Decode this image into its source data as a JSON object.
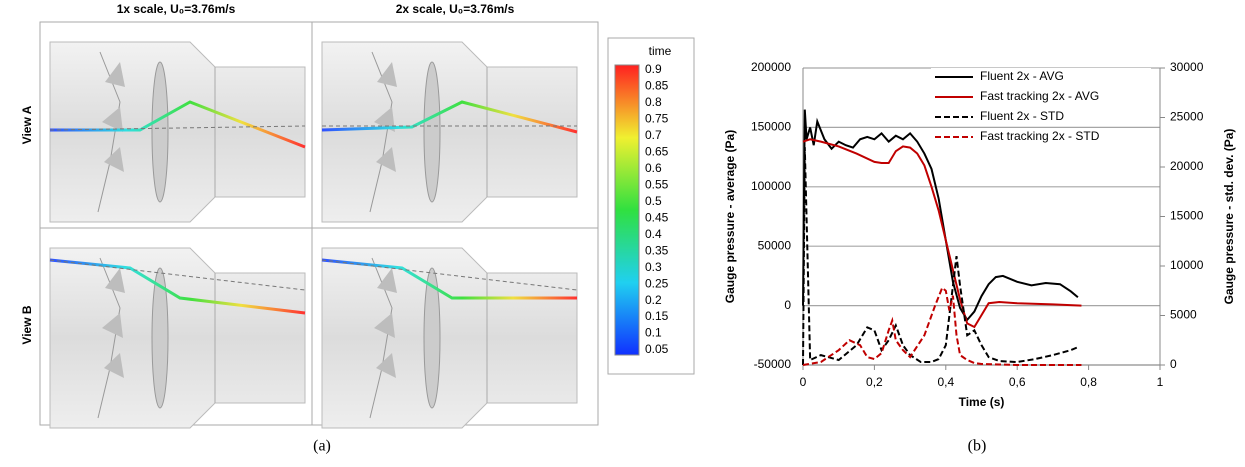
{
  "panel_a": {
    "columns": [
      "1x scale, U₀=3.76m/s",
      "2x scale, U₀=3.76m/s"
    ],
    "rows": [
      "View A",
      "View B"
    ],
    "colorbar": {
      "title": "time",
      "ticks": [
        0.9,
        0.85,
        0.8,
        0.75,
        0.7,
        0.65,
        0.6,
        0.55,
        0.5,
        0.45,
        0.4,
        0.35,
        0.3,
        0.25,
        0.2,
        0.15,
        0.1,
        0.05
      ]
    },
    "caption": "(a)"
  },
  "chart_data": {
    "type": "line",
    "caption": "(b)",
    "xlabel": "Time (s)",
    "ylabel": "Gauge pressure - average (Pa)",
    "y2label": "Gauge pressure - std. dev. (Pa)",
    "xlim": [
      0,
      1
    ],
    "xticks": [
      0,
      {
        "value": 0.2,
        "label": "0,2"
      },
      {
        "value": 0.4,
        "label": "0,4"
      },
      {
        "value": 0.6,
        "label": "0,6"
      },
      {
        "value": 0.8,
        "label": "0,8"
      },
      1
    ],
    "ylim": [
      -50000,
      200000
    ],
    "yticks": [
      -50000,
      0,
      50000,
      100000,
      150000,
      200000
    ],
    "y2lim": [
      0,
      30000
    ],
    "y2ticks": [
      0,
      5000,
      10000,
      15000,
      20000,
      25000,
      30000
    ],
    "grid": true,
    "legend": "top-right",
    "series": [
      {
        "name": "Fluent 2x - AVG",
        "color": "#000000",
        "style": "solid",
        "x": [
          0,
          0.005,
          0.01,
          0.02,
          0.03,
          0.04,
          0.06,
          0.08,
          0.1,
          0.12,
          0.14,
          0.16,
          0.18,
          0.2,
          0.22,
          0.24,
          0.26,
          0.28,
          0.3,
          0.32,
          0.34,
          0.36,
          0.38,
          0.4,
          0.42,
          0.44,
          0.46,
          0.48,
          0.5,
          0.52,
          0.54,
          0.56,
          0.6,
          0.64,
          0.68,
          0.72,
          0.75,
          0.77
        ],
        "values": [
          0,
          165000,
          140000,
          150000,
          135000,
          155000,
          140000,
          132000,
          138000,
          135000,
          133000,
          140000,
          142000,
          140000,
          145000,
          138000,
          143000,
          140000,
          145000,
          138000,
          128000,
          115000,
          90000,
          55000,
          20000,
          -2000,
          -12000,
          -5000,
          8000,
          18000,
          24000,
          25000,
          20000,
          17000,
          19000,
          18000,
          12000,
          7000
        ]
      },
      {
        "name": "Fast tracking 2x - AVG",
        "color": "#c00000",
        "style": "solid",
        "x": [
          0,
          0.02,
          0.05,
          0.1,
          0.15,
          0.2,
          0.22,
          0.24,
          0.26,
          0.28,
          0.3,
          0.32,
          0.34,
          0.36,
          0.38,
          0.4,
          0.42,
          0.44,
          0.46,
          0.48,
          0.5,
          0.52,
          0.55,
          0.6,
          0.7,
          0.78
        ],
        "values": [
          138000,
          140000,
          138000,
          134000,
          128000,
          121000,
          120000,
          120000,
          130000,
          134000,
          133000,
          128000,
          118000,
          100000,
          80000,
          55000,
          30000,
          5000,
          -15000,
          -18000,
          -8000,
          2000,
          3000,
          2000,
          1000,
          0
        ]
      },
      {
        "name": "Fluent 2x - STD",
        "color": "#000000",
        "style": "dashed",
        "axis": "y2",
        "x": [
          0,
          0.005,
          0.02,
          0.05,
          0.1,
          0.15,
          0.18,
          0.2,
          0.22,
          0.24,
          0.26,
          0.28,
          0.3,
          0.33,
          0.36,
          0.38,
          0.4,
          0.42,
          0.43,
          0.44,
          0.46,
          0.48,
          0.5,
          0.52,
          0.55,
          0.6,
          0.65,
          0.7,
          0.75,
          0.77
        ],
        "values": [
          0,
          22000,
          500,
          1000,
          500,
          2000,
          3800,
          3500,
          1500,
          2500,
          4000,
          2000,
          1000,
          300,
          300,
          600,
          2000,
          8000,
          11000,
          8000,
          3000,
          3500,
          2000,
          800,
          400,
          300,
          600,
          1000,
          1500,
          1800
        ]
      },
      {
        "name": "Fast tracking 2x - STD",
        "color": "#c00000",
        "style": "dashed",
        "axis": "y2",
        "x": [
          0,
          0.05,
          0.1,
          0.13,
          0.16,
          0.18,
          0.2,
          0.22,
          0.24,
          0.25,
          0.26,
          0.28,
          0.3,
          0.34,
          0.37,
          0.39,
          0.4,
          0.41,
          0.42,
          0.43,
          0.44,
          0.46,
          0.48,
          0.5,
          0.55,
          0.6,
          0.7,
          0.78
        ],
        "values": [
          0,
          300,
          1500,
          2500,
          2000,
          800,
          600,
          1200,
          3500,
          4500,
          2500,
          1500,
          800,
          3000,
          6000,
          7800,
          7500,
          5500,
          7000,
          3000,
          1000,
          500,
          200,
          100,
          50,
          0,
          0,
          0
        ]
      }
    ]
  }
}
